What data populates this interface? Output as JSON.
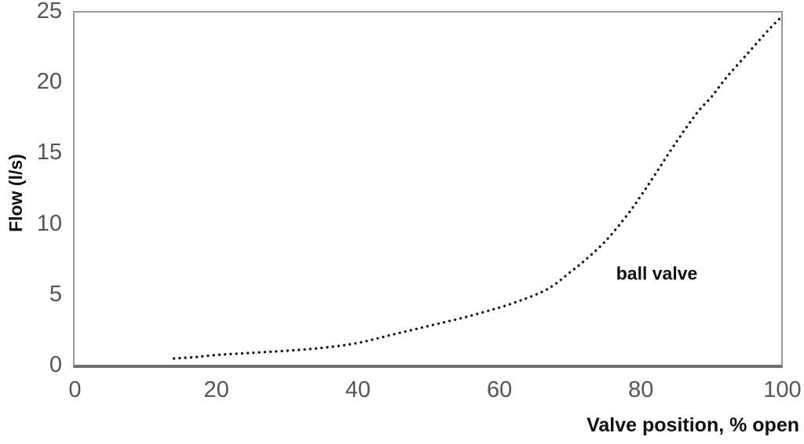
{
  "chart_data": {
    "type": "line",
    "line_style": "dotted",
    "title": "",
    "xlabel": "Valve position, % open",
    "ylabel": "Flow (l/s)",
    "xlim": [
      0,
      100
    ],
    "ylim": [
      0,
      25
    ],
    "x_ticks": [
      "0",
      "20",
      "40",
      "60",
      "80",
      "100"
    ],
    "y_ticks": [
      "0",
      "5",
      "10",
      "15",
      "20",
      "25"
    ],
    "grid": false,
    "legend_position": "none",
    "series": [
      {
        "name": "ball valve",
        "color": "#161616",
        "marker": "round-dot",
        "x": [
          14,
          17,
          20,
          25,
          30,
          35,
          40,
          45,
          50,
          55,
          60,
          63,
          66,
          68,
          70,
          72,
          75,
          78,
          80,
          82,
          85,
          88,
          90,
          92,
          95,
          98,
          100
        ],
        "y": [
          0.5,
          0.6,
          0.75,
          0.9,
          1.05,
          1.25,
          1.6,
          2.2,
          2.8,
          3.4,
          4.1,
          4.6,
          5.2,
          5.8,
          6.6,
          7.4,
          8.8,
          10.6,
          12.0,
          13.5,
          15.8,
          17.9,
          19.0,
          20.3,
          22.0,
          23.7,
          24.7
        ]
      }
    ],
    "annotations": [
      {
        "text": "ball valve",
        "x": 76.5,
        "y": 6.5
      }
    ]
  },
  "colors": {
    "tick_label": "#555555",
    "axis_title": "#111111",
    "curve": "#161616",
    "plot_border": "#989898",
    "background": "#ffffff"
  }
}
